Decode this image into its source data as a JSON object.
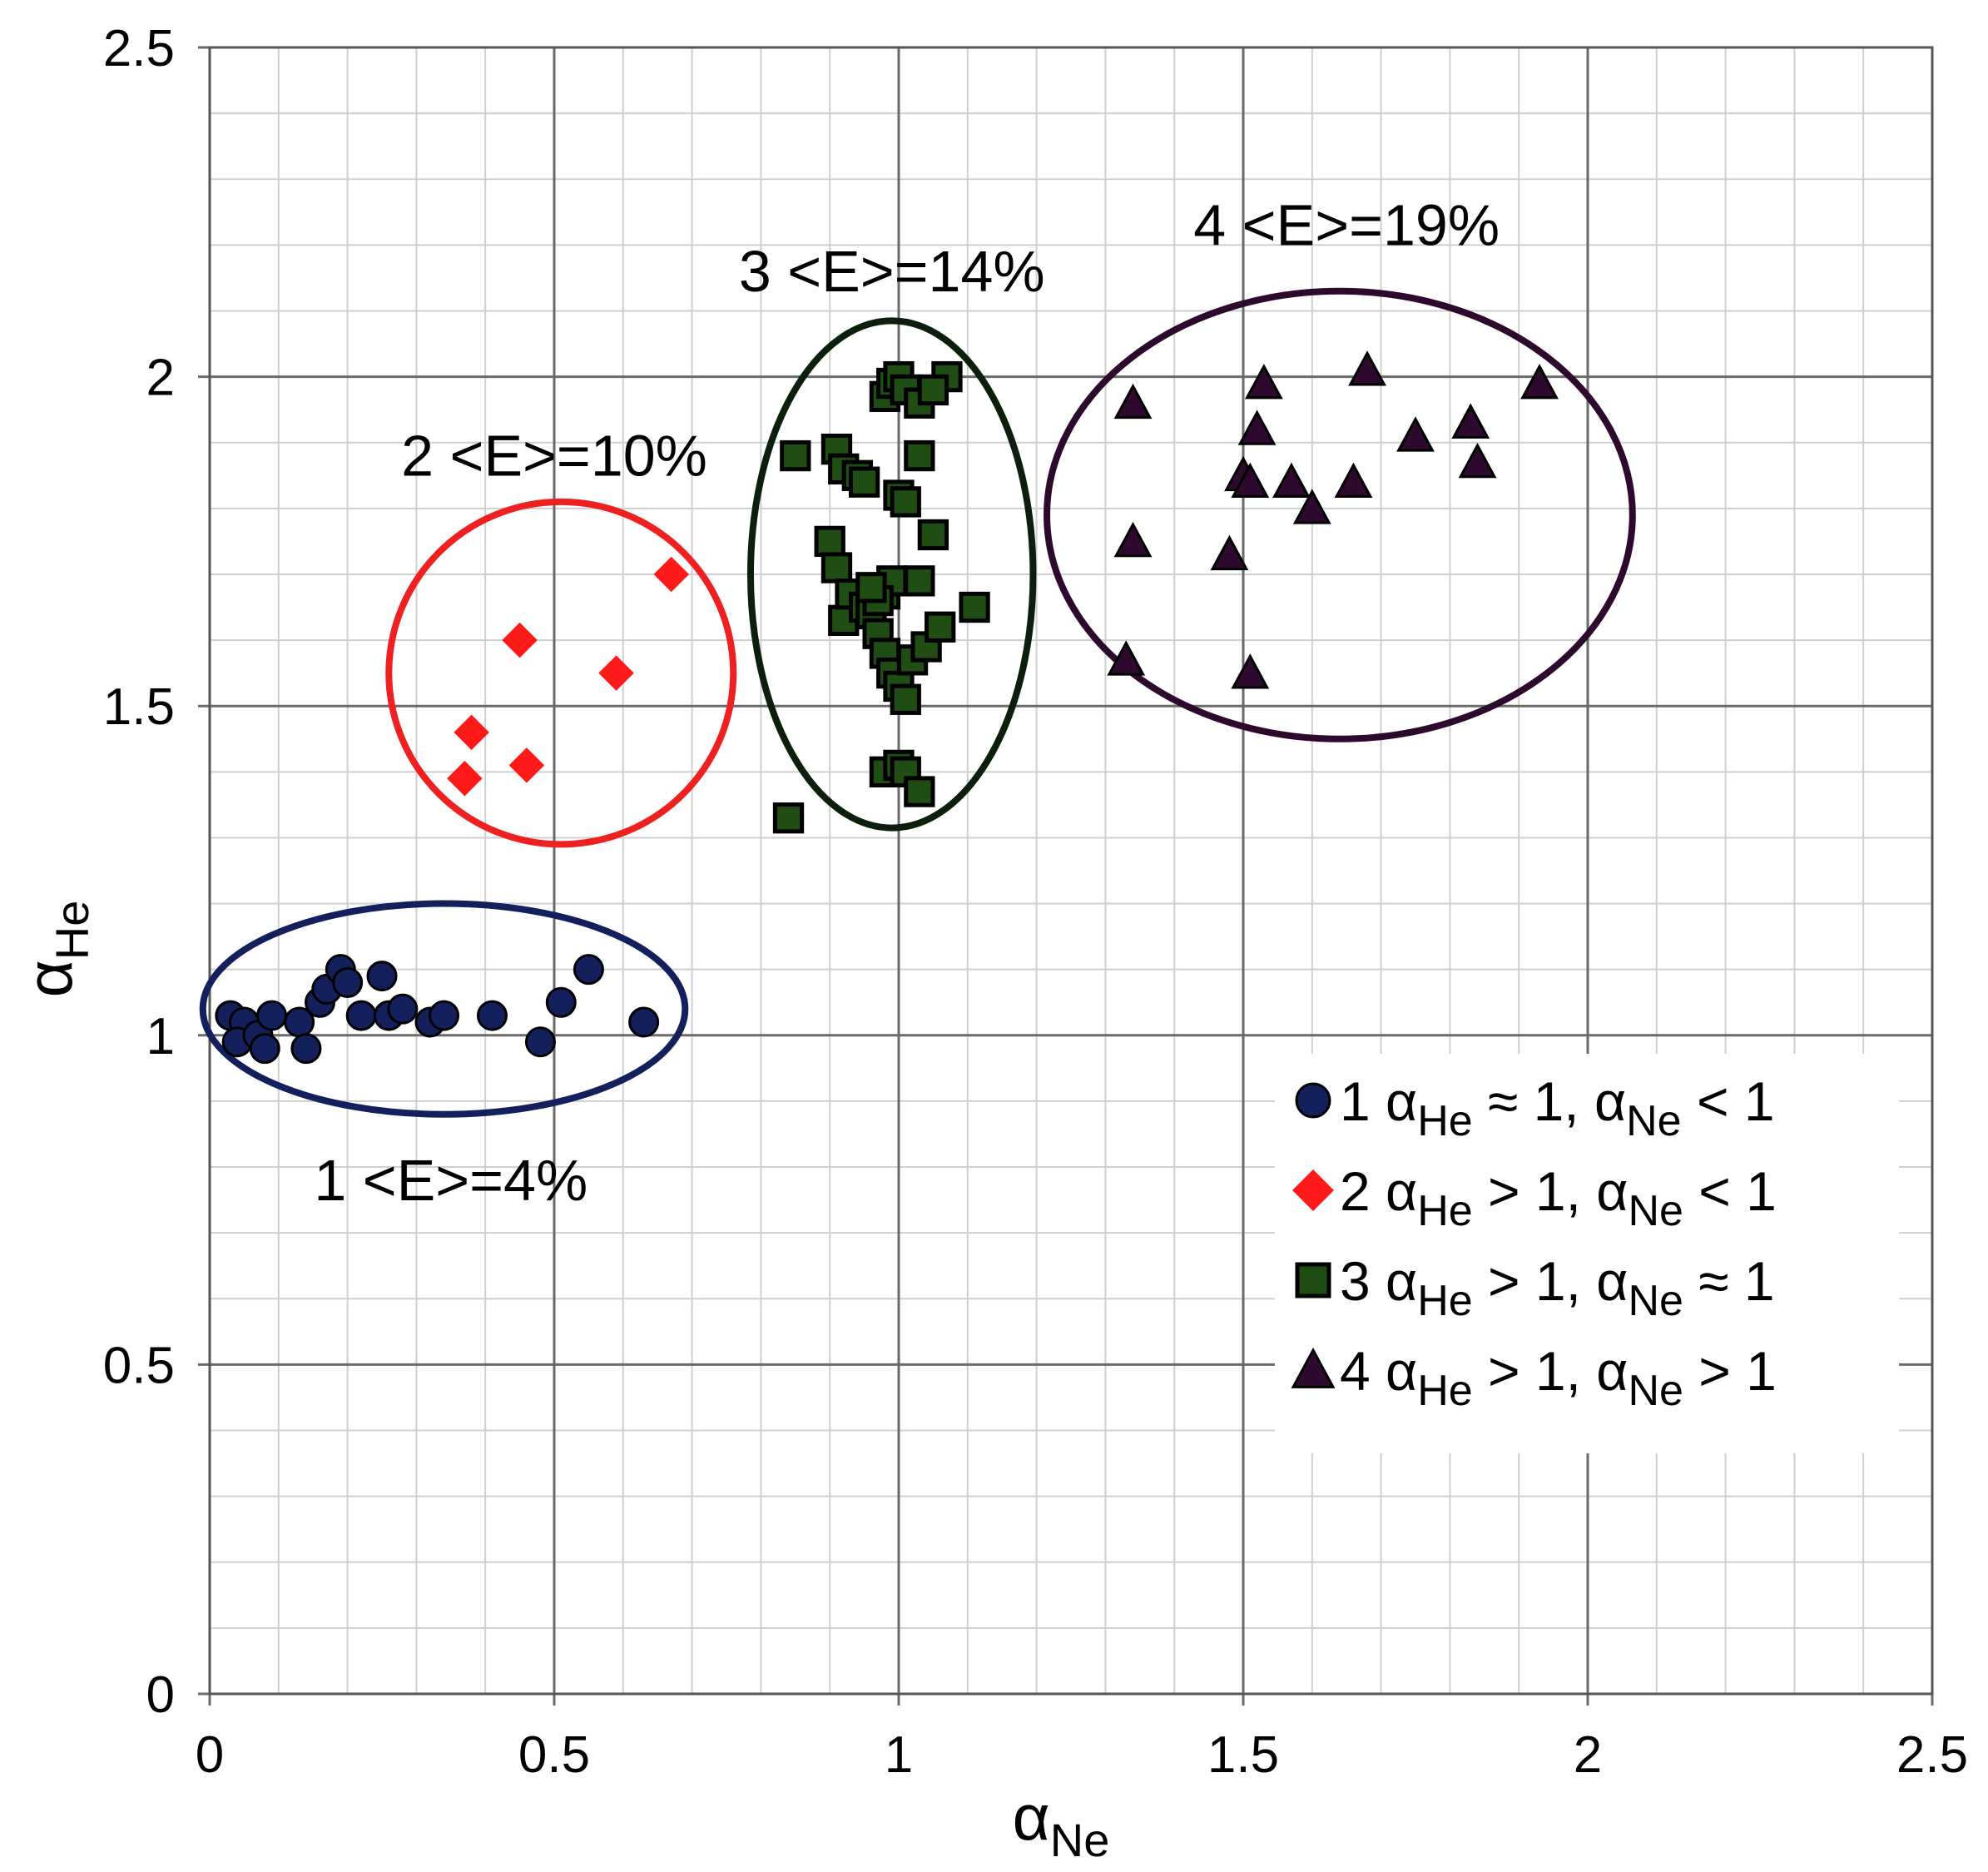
{
  "chart_data": {
    "type": "scatter",
    "title": "",
    "xlabel": {
      "symbol": "α",
      "subscript": "Ne"
    },
    "ylabel": {
      "symbol": "α",
      "subscript": "He"
    },
    "xlim": [
      0,
      2.5
    ],
    "ylim": [
      0,
      2.5
    ],
    "x_ticks": [
      "0",
      "0.5",
      "1",
      "1.5",
      "2",
      "2.5"
    ],
    "y_ticks": [
      "0",
      "0.5",
      "1",
      "1.5",
      "2",
      "2.5"
    ],
    "x_tick_values": [
      0,
      0.5,
      1,
      1.5,
      2,
      2.5
    ],
    "y_tick_values": [
      0,
      0.5,
      1,
      1.5,
      2,
      2.5
    ],
    "minor_step": 0.1,
    "grid": true,
    "legend_position": "bottom-right",
    "series": [
      {
        "name": "1",
        "marker": "circle",
        "color": "#13205c",
        "legend": {
          "id": "1",
          "a": "α",
          "sa": "He",
          "r1": " ≈ 1, ",
          "b": "α",
          "sb": "Ne",
          "r2": " < 1"
        },
        "ellipse": {
          "cx": 0.34,
          "cy": 1.04,
          "rx": 0.35,
          "ry": 0.16,
          "color": "#13205c"
        },
        "cluster_label": {
          "text": "1 <E>=4%",
          "x": 0.35,
          "y": 0.78
        },
        "points": [
          [
            0.03,
            1.03
          ],
          [
            0.05,
            1.02
          ],
          [
            0.04,
            0.99
          ],
          [
            0.07,
            1.0
          ],
          [
            0.08,
            0.98
          ],
          [
            0.09,
            1.03
          ],
          [
            0.13,
            1.02
          ],
          [
            0.14,
            0.98
          ],
          [
            0.16,
            1.05
          ],
          [
            0.17,
            1.07
          ],
          [
            0.19,
            1.1
          ],
          [
            0.2,
            1.08
          ],
          [
            0.22,
            1.03
          ],
          [
            0.25,
            1.09
          ],
          [
            0.26,
            1.03
          ],
          [
            0.28,
            1.04
          ],
          [
            0.32,
            1.02
          ],
          [
            0.34,
            1.03
          ],
          [
            0.41,
            1.03
          ],
          [
            0.48,
            0.99
          ],
          [
            0.51,
            1.05
          ],
          [
            0.55,
            1.1
          ],
          [
            0.63,
            1.02
          ]
        ]
      },
      {
        "name": "2",
        "marker": "diamond",
        "color": "#ff1a1a",
        "legend": {
          "id": "2",
          "a": "α",
          "sa": "He",
          "r1": " > 1, ",
          "b": "α",
          "sb": "Ne",
          "r2": " < 1"
        },
        "ellipse": {
          "cx": 0.51,
          "cy": 1.55,
          "rx": 0.25,
          "ry": 0.26,
          "color": "#ef2020"
        },
        "cluster_label": {
          "text": "2 <E>=10%",
          "x": 0.5,
          "y": 1.88
        },
        "points": [
          [
            0.37,
            1.39
          ],
          [
            0.38,
            1.46
          ],
          [
            0.45,
            1.6
          ],
          [
            0.46,
            1.41
          ],
          [
            0.59,
            1.55
          ],
          [
            0.67,
            1.7
          ]
        ]
      },
      {
        "name": "3",
        "marker": "square",
        "color": "#1f4d14",
        "legend": {
          "id": "3",
          "a": "α",
          "sa": "He",
          "r1": " > 1, ",
          "b": "α",
          "sb": "Ne",
          "r2": " ≈ 1"
        },
        "ellipse": {
          "cx": 0.99,
          "cy": 1.7,
          "rx": 0.205,
          "ry": 0.385,
          "color": "#0c1f0c"
        },
        "cluster_label": {
          "text": "3 <E>=14%",
          "x": 0.99,
          "y": 2.16
        },
        "points": [
          [
            0.84,
            1.33
          ],
          [
            0.85,
            1.88
          ],
          [
            0.9,
            1.75
          ],
          [
            0.91,
            1.71
          ],
          [
            0.91,
            1.89
          ],
          [
            0.92,
            1.86
          ],
          [
            0.94,
            1.85
          ],
          [
            0.95,
            1.84
          ],
          [
            0.92,
            1.63
          ],
          [
            0.93,
            1.67
          ],
          [
            0.95,
            1.65
          ],
          [
            0.96,
            1.64
          ],
          [
            0.97,
            1.61
          ],
          [
            0.98,
            1.58
          ],
          [
            0.99,
            1.55
          ],
          [
            1.0,
            1.53
          ],
          [
            1.01,
            1.51
          ],
          [
            0.98,
            1.67
          ],
          [
            0.99,
            1.69
          ],
          [
            1.02,
            1.57
          ],
          [
            1.04,
            1.59
          ],
          [
            0.98,
            1.97
          ],
          [
            0.99,
            1.99
          ],
          [
            1.0,
            2.0
          ],
          [
            1.01,
            1.98
          ],
          [
            1.03,
            1.96
          ],
          [
            1.07,
            2.0
          ],
          [
            1.05,
            1.98
          ],
          [
            1.03,
            1.88
          ],
          [
            1.0,
            1.82
          ],
          [
            1.01,
            1.81
          ],
          [
            1.05,
            1.76
          ],
          [
            1.03,
            1.69
          ],
          [
            1.06,
            1.62
          ],
          [
            1.11,
            1.65
          ],
          [
            0.98,
            1.4
          ],
          [
            1.0,
            1.41
          ],
          [
            1.01,
            1.4
          ],
          [
            1.03,
            1.37
          ],
          [
            0.97,
            1.66
          ],
          [
            0.96,
            1.68
          ]
        ]
      },
      {
        "name": "4",
        "marker": "triangle",
        "color": "#2d0a2d",
        "legend": {
          "id": "4",
          "a": "α",
          "sa": "He",
          "r1": " > 1, ",
          "b": "α",
          "sb": "Ne",
          "r2": " > 1"
        },
        "ellipse": {
          "cx": 1.64,
          "cy": 1.79,
          "rx": 0.425,
          "ry": 0.34,
          "color": "#2d0a2d"
        },
        "cluster_label": {
          "text": "4 <E>=19%",
          "x": 1.65,
          "y": 2.23
        },
        "points": [
          [
            1.34,
            1.96
          ],
          [
            1.34,
            1.75
          ],
          [
            1.33,
            1.57
          ],
          [
            1.48,
            1.73
          ],
          [
            1.5,
            1.85
          ],
          [
            1.51,
            1.55
          ],
          [
            1.51,
            1.84
          ],
          [
            1.52,
            1.92
          ],
          [
            1.53,
            1.99
          ],
          [
            1.57,
            1.84
          ],
          [
            1.6,
            1.8
          ],
          [
            1.66,
            1.84
          ],
          [
            1.68,
            2.01
          ],
          [
            1.75,
            1.91
          ],
          [
            1.83,
            1.93
          ],
          [
            1.84,
            1.87
          ],
          [
            1.93,
            1.99
          ]
        ]
      }
    ]
  }
}
